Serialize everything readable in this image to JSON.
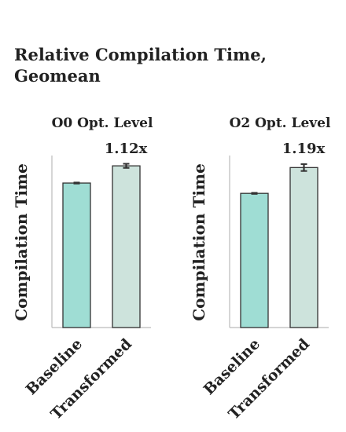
{
  "figure": {
    "title": "Relative Compilation Time, Geomean"
  },
  "colors": {
    "baseline": "#9fddd4",
    "transformed": "#cde3dc",
    "edge": "#333333",
    "axis": "#bbbbbb"
  },
  "chart_data": [
    {
      "type": "bar",
      "title": "O0 Opt. Level",
      "ylabel": "Compilation Time",
      "categories": [
        "Baseline",
        "Transformed"
      ],
      "values": [
        0.84,
        0.94
      ],
      "errors": [
        0.003,
        0.012
      ],
      "ylim": [
        0,
        1.0
      ],
      "annotation": "1.12x",
      "grid": false,
      "y_ticks_shown": false
    },
    {
      "type": "bar",
      "title": "O2 Opt. Level",
      "ylabel": "Compilation Time",
      "categories": [
        "Baseline",
        "Transformed"
      ],
      "values": [
        0.78,
        0.93
      ],
      "errors": [
        0.003,
        0.02
      ],
      "ylim": [
        0,
        1.0
      ],
      "annotation": "1.19x",
      "grid": false,
      "y_ticks_shown": false
    }
  ]
}
